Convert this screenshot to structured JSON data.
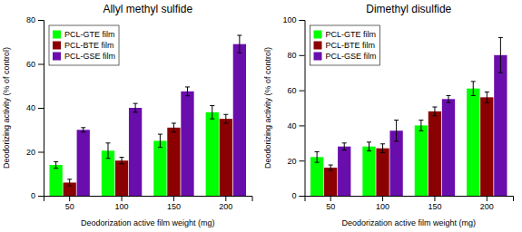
{
  "chart_data": [
    {
      "type": "bar",
      "title": "Allyl methyl sulfide",
      "ylabel": "Deodorizing activity (% of control)",
      "xlabel": "Deodorization active film weight (mg)",
      "categories": [
        50,
        100,
        150,
        200
      ],
      "series": [
        {
          "name": "PCL-GTE film",
          "color": "#00FF00",
          "values": [
            14,
            20.5,
            25,
            38
          ],
          "errors": [
            1.5,
            3.5,
            3,
            3
          ]
        },
        {
          "name": "PCL-BTE film",
          "color": "#8B0000",
          "values": [
            6,
            16,
            31,
            35
          ],
          "errors": [
            1.5,
            1.5,
            2,
            2
          ]
        },
        {
          "name": "PCL-GSE film",
          "color": "#6A0DAD",
          "values": [
            30,
            40,
            47.5,
            69
          ],
          "errors": [
            1,
            2,
            2,
            4
          ]
        }
      ],
      "ylim": [
        0,
        80
      ],
      "yticks": [
        0,
        20,
        40,
        60,
        80
      ],
      "grid": false,
      "legend": "upper-left"
    },
    {
      "type": "bar",
      "title": "Dimethyl disulfide",
      "ylabel": "Deodorizing activity (% of control)",
      "xlabel": "Deodorization active film weight (mg)",
      "categories": [
        50,
        100,
        150,
        200
      ],
      "series": [
        {
          "name": "PCL-GTE film",
          "color": "#00FF00",
          "values": [
            22,
            28,
            40,
            61
          ],
          "errors": [
            3,
            2.5,
            3,
            4
          ]
        },
        {
          "name": "PCL-BTE film",
          "color": "#8B0000",
          "values": [
            16,
            27,
            48,
            56
          ],
          "errors": [
            1.5,
            2.5,
            2.5,
            3
          ]
        },
        {
          "name": "PCL-GSE film",
          "color": "#6A0DAD",
          "values": [
            28,
            37,
            55,
            80
          ],
          "errors": [
            2,
            6,
            2,
            10
          ]
        }
      ],
      "ylim": [
        0,
        100
      ],
      "yticks": [
        0,
        20,
        40,
        60,
        80,
        100
      ],
      "grid": false,
      "legend": "upper-left"
    }
  ]
}
